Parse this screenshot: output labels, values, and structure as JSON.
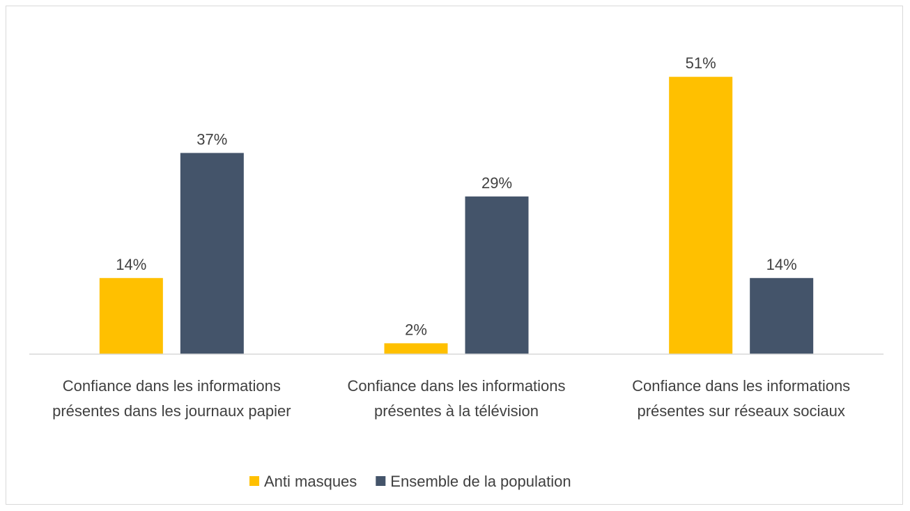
{
  "chart_data": {
    "type": "bar",
    "categories": [
      "Confiance dans les informations présentes dans les journaux papier",
      "Confiance dans les informations présentes à la télévision",
      "Confiance dans les informations présentes sur réseaux sociaux"
    ],
    "series": [
      {
        "name": "Anti masques",
        "color": "#ffc000",
        "values": [
          14,
          2,
          51
        ],
        "value_labels": [
          "14%",
          "2%",
          "51%"
        ]
      },
      {
        "name": "Ensemble de la population",
        "color": "#44546a",
        "values": [
          37,
          29,
          14
        ],
        "value_labels": [
          "37%",
          "29%",
          "14%"
        ]
      }
    ],
    "legend": "bottom"
  }
}
